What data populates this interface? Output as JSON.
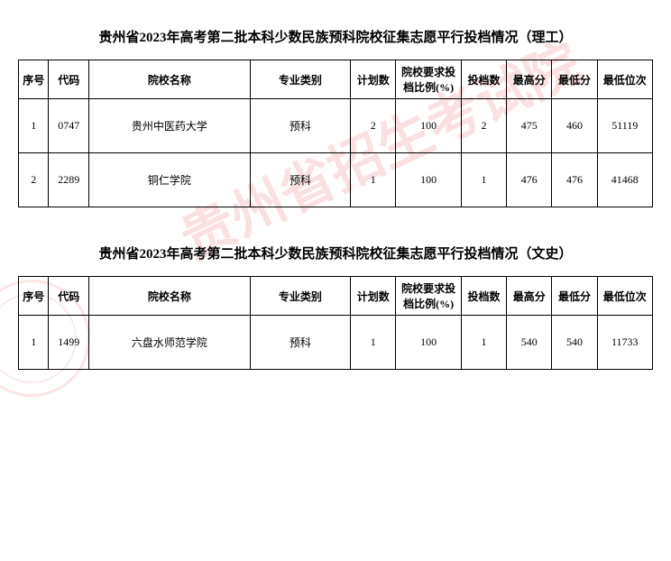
{
  "watermark_text": "贵州省招生考试院",
  "section1": {
    "title": "贵州省2023年高考第二批本科少数民族预科院校征集志愿平行投档情况（理工）",
    "headers": {
      "seq": "序号",
      "code": "代码",
      "name": "院校名称",
      "major": "专业类别",
      "plan": "计划数",
      "ratio": "院校要求投档比例(%)",
      "count": "投档数",
      "high": "最高分",
      "low": "最低分",
      "rank": "最低位次"
    },
    "rows": [
      {
        "seq": "1",
        "code": "0747",
        "name": "贵州中医药大学",
        "major": "预科",
        "plan": "2",
        "ratio": "100",
        "count": "2",
        "high": "475",
        "low": "460",
        "rank": "51119"
      },
      {
        "seq": "2",
        "code": "2289",
        "name": "铜仁学院",
        "major": "预科",
        "plan": "1",
        "ratio": "100",
        "count": "1",
        "high": "476",
        "low": "476",
        "rank": "41468"
      }
    ]
  },
  "section2": {
    "title": "贵州省2023年高考第二批本科少数民族预科院校征集志愿平行投档情况（文史）",
    "headers": {
      "seq": "序号",
      "code": "代码",
      "name": "院校名称",
      "major": "专业类别",
      "plan": "计划数",
      "ratio": "院校要求投档比例(%)",
      "count": "投档数",
      "high": "最高分",
      "low": "最低分",
      "rank": "最低位次"
    },
    "rows": [
      {
        "seq": "1",
        "code": "1499",
        "name": "六盘水师范学院",
        "major": "预科",
        "plan": "1",
        "ratio": "100",
        "count": "1",
        "high": "540",
        "low": "540",
        "rank": "11733"
      }
    ]
  }
}
